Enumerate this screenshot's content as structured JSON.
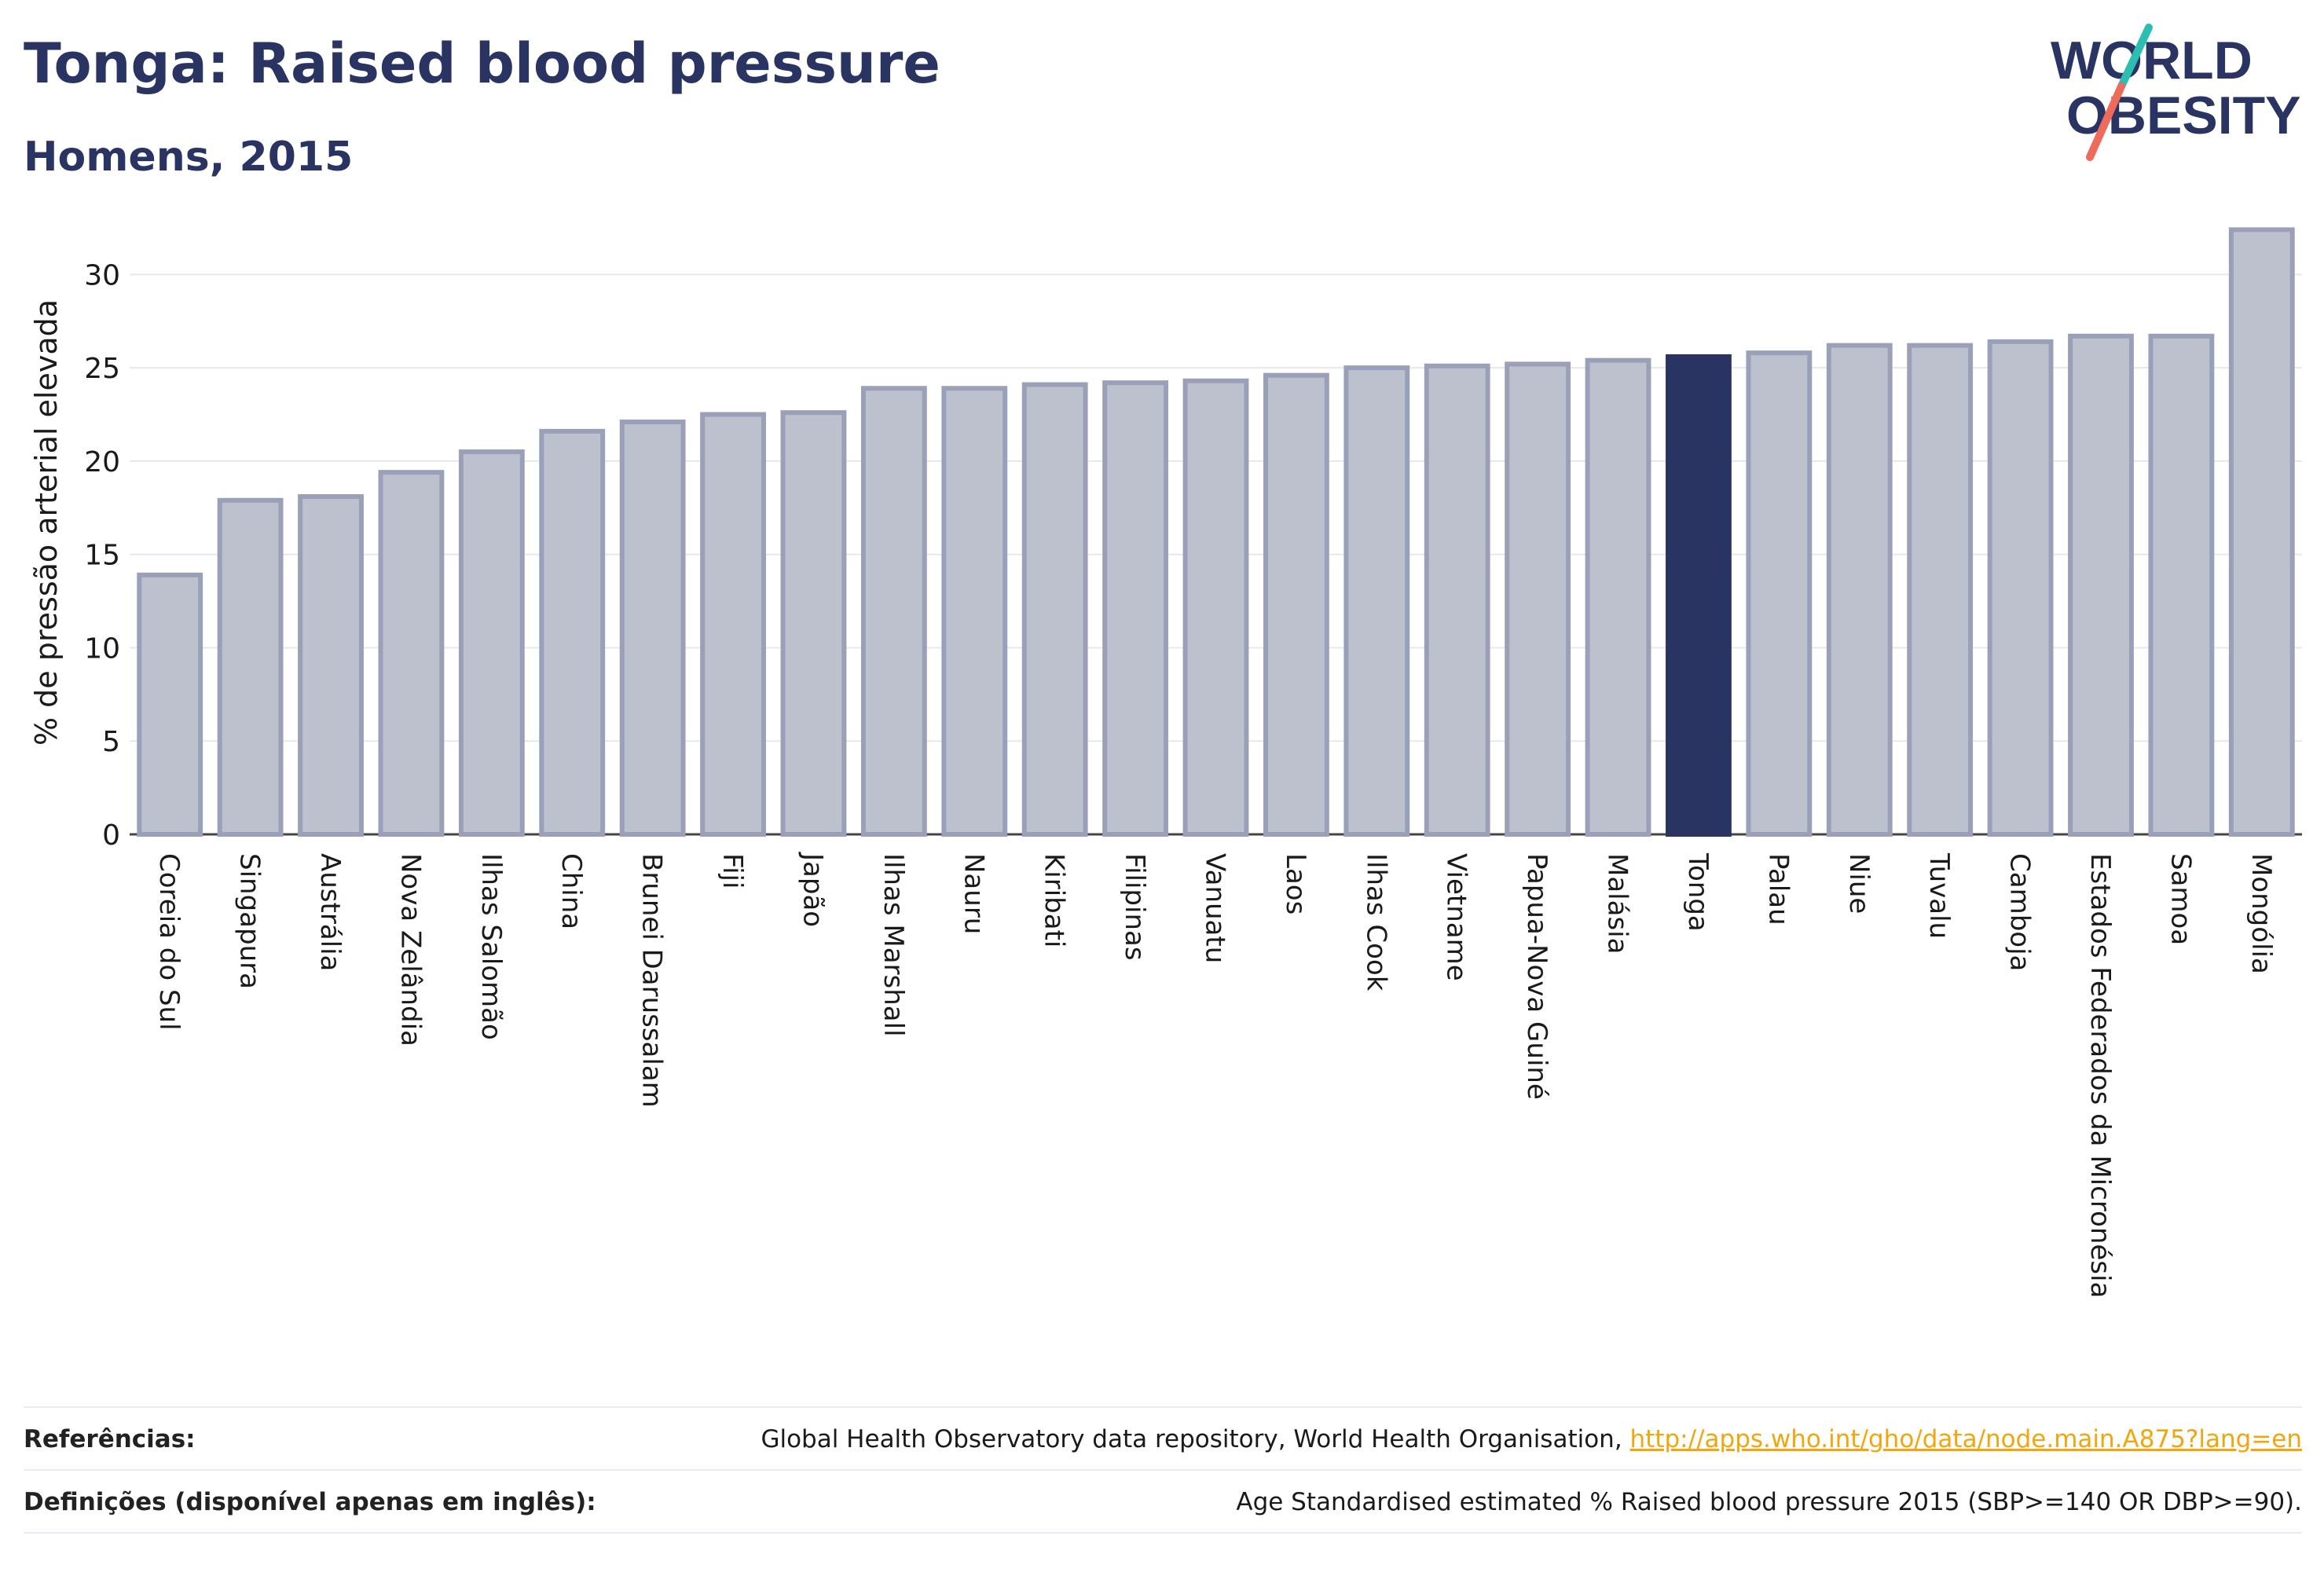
{
  "header": {
    "title": "Tonga: Raised blood pressure",
    "subtitle": "Homens, 2015"
  },
  "logo": {
    "line1": "WORLD",
    "line2": "OBESITY",
    "accent_teal": "#2ebdb1",
    "accent_coral": "#ee6a5b"
  },
  "colors": {
    "bar": "#bdc0cd",
    "bar_border": "#9aa0b8",
    "highlight": "#2a3463",
    "text": "#2a3463"
  },
  "chart_data": {
    "type": "bar",
    "ylabel": "% de pressão arterial elevada",
    "xlabel": "",
    "ylim": [
      0,
      32.5
    ],
    "yticks": [
      0,
      5,
      10,
      15,
      20,
      25,
      30
    ],
    "grid": true,
    "highlight": "Tonga",
    "categories": [
      "Coreia do Sul",
      "Singapura",
      "Austrália",
      "Nova Zelândia",
      "Ilhas Salomão",
      "China",
      "Brunei Darussalam",
      "Fiji",
      "Japão",
      "Ilhas Marshall",
      "Nauru",
      "Kiribati",
      "Filipinas",
      "Vanuatu",
      "Laos",
      "Ilhas Cook",
      "Vietname",
      "Papua-Nova Guiné",
      "Malásia",
      "Tonga",
      "Palau",
      "Niue",
      "Tuvalu",
      "Camboja",
      "Estados Federados da Micronésia",
      "Samoa",
      "Mongólia"
    ],
    "values": [
      13.9,
      17.9,
      18.1,
      19.4,
      20.5,
      21.6,
      22.1,
      22.5,
      22.6,
      23.9,
      23.9,
      24.1,
      24.2,
      24.3,
      24.6,
      25.0,
      25.1,
      25.2,
      25.4,
      25.6,
      25.8,
      26.2,
      26.2,
      26.4,
      26.7,
      26.7,
      32.4
    ]
  },
  "footer": {
    "references_label": "Referências:",
    "references_text": "Global Health Observatory data repository, World Health Organisation, ",
    "references_link": "http://apps.who.int/gho/data/node.main.A875?lang=en",
    "definitions_label": "Definições (disponível apenas em inglês):",
    "definitions_text": "Age Standardised estimated % Raised blood pressure 2015 (SBP>=140 OR DBP>=90)."
  }
}
